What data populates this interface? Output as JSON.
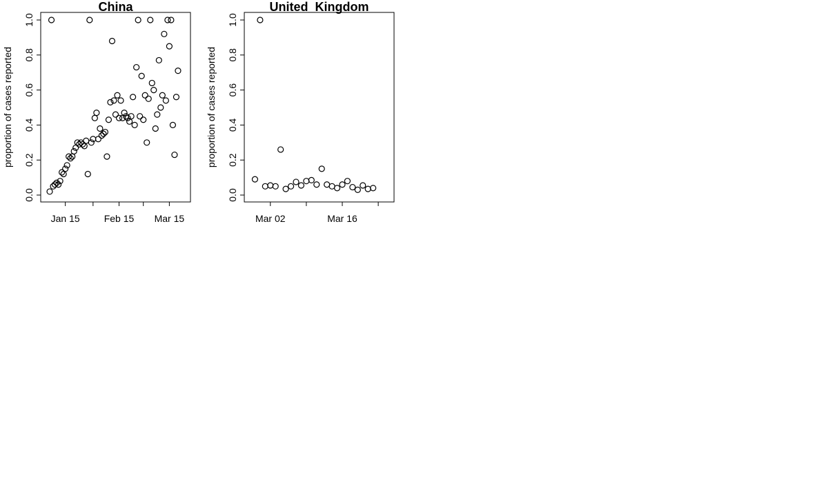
{
  "chart_data": [
    {
      "type": "scatter",
      "title": "China",
      "xlabel": "",
      "ylabel": "proportion of cases reported",
      "x_axis": "date",
      "xlim": [
        "2020-01-04",
        "2020-03-24"
      ],
      "ylim": [
        0,
        1
      ],
      "yticks": [
        "0.0",
        "0.2",
        "0.4",
        "0.6",
        "0.8",
        "1.0"
      ],
      "xticks": [
        {
          "date": "2020-01-15",
          "label": "Jan 15"
        },
        {
          "date": "2020-01-31",
          "label": ""
        },
        {
          "date": "2020-02-15",
          "label": "Feb 15"
        },
        {
          "date": "2020-02-29",
          "label": ""
        },
        {
          "date": "2020-03-15",
          "label": "Mar 15"
        }
      ],
      "grid": false,
      "points": [
        [
          "2020-01-06",
          0.02
        ],
        [
          "2020-01-07",
          1.0
        ],
        [
          "2020-01-08",
          0.05
        ],
        [
          "2020-01-09",
          0.06
        ],
        [
          "2020-01-10",
          0.07
        ],
        [
          "2020-01-11",
          0.06
        ],
        [
          "2020-01-12",
          0.08
        ],
        [
          "2020-01-13",
          0.13
        ],
        [
          "2020-01-14",
          0.12
        ],
        [
          "2020-01-15",
          0.15
        ],
        [
          "2020-01-16",
          0.17
        ],
        [
          "2020-01-17",
          0.22
        ],
        [
          "2020-01-18",
          0.21
        ],
        [
          "2020-01-19",
          0.22
        ],
        [
          "2020-01-20",
          0.25
        ],
        [
          "2020-01-21",
          0.27
        ],
        [
          "2020-01-22",
          0.3
        ],
        [
          "2020-01-23",
          0.29
        ],
        [
          "2020-01-24",
          0.3
        ],
        [
          "2020-01-25",
          0.29
        ],
        [
          "2020-01-26",
          0.28
        ],
        [
          "2020-01-27",
          0.31
        ],
        [
          "2020-01-28",
          0.12
        ],
        [
          "2020-01-29",
          1.0
        ],
        [
          "2020-01-30",
          0.3
        ],
        [
          "2020-01-31",
          0.32
        ],
        [
          "2020-02-01",
          0.44
        ],
        [
          "2020-02-02",
          0.47
        ],
        [
          "2020-02-03",
          0.32
        ],
        [
          "2020-02-04",
          0.38
        ],
        [
          "2020-02-05",
          0.34
        ],
        [
          "2020-02-06",
          0.35
        ],
        [
          "2020-02-07",
          0.36
        ],
        [
          "2020-02-08",
          0.22
        ],
        [
          "2020-02-09",
          0.43
        ],
        [
          "2020-02-10",
          0.53
        ],
        [
          "2020-02-11",
          0.88
        ],
        [
          "2020-02-12",
          0.54
        ],
        [
          "2020-02-13",
          0.46
        ],
        [
          "2020-02-14",
          0.57
        ],
        [
          "2020-02-15",
          0.44
        ],
        [
          "2020-02-16",
          0.54
        ],
        [
          "2020-02-17",
          0.44
        ],
        [
          "2020-02-18",
          0.47
        ],
        [
          "2020-02-19",
          0.45
        ],
        [
          "2020-02-20",
          0.44
        ],
        [
          "2020-02-21",
          0.42
        ],
        [
          "2020-02-22",
          0.45
        ],
        [
          "2020-02-23",
          0.56
        ],
        [
          "2020-02-24",
          0.4
        ],
        [
          "2020-02-25",
          0.73
        ],
        [
          "2020-02-26",
          1.0
        ],
        [
          "2020-02-27",
          0.45
        ],
        [
          "2020-02-28",
          0.68
        ],
        [
          "2020-02-29",
          0.43
        ],
        [
          "2020-03-01",
          0.57
        ],
        [
          "2020-03-02",
          0.3
        ],
        [
          "2020-03-03",
          0.55
        ],
        [
          "2020-03-04",
          1.0
        ],
        [
          "2020-03-05",
          0.64
        ],
        [
          "2020-03-06",
          0.6
        ],
        [
          "2020-03-07",
          0.38
        ],
        [
          "2020-03-08",
          0.46
        ],
        [
          "2020-03-09",
          0.77
        ],
        [
          "2020-03-10",
          0.5
        ],
        [
          "2020-03-11",
          0.57
        ],
        [
          "2020-03-12",
          0.92
        ],
        [
          "2020-03-13",
          0.54
        ],
        [
          "2020-03-14",
          1.0
        ],
        [
          "2020-03-15",
          0.85
        ],
        [
          "2020-03-16",
          1.0
        ],
        [
          "2020-03-17",
          0.4
        ],
        [
          "2020-03-18",
          0.23
        ],
        [
          "2020-03-19",
          0.56
        ],
        [
          "2020-03-20",
          0.71
        ]
      ]
    },
    {
      "type": "scatter",
      "title": "United_Kingdom",
      "xlabel": "",
      "ylabel": "proportion of cases reported",
      "x_axis": "date",
      "xlim": [
        "2020-02-27",
        "2020-03-25"
      ],
      "ylim": [
        0,
        1
      ],
      "yticks": [
        "0.0",
        "0.2",
        "0.4",
        "0.6",
        "0.8",
        "1.0"
      ],
      "xticks": [
        {
          "date": "2020-03-02",
          "label": "Mar 02"
        },
        {
          "date": "2020-03-09",
          "label": ""
        },
        {
          "date": "2020-03-16",
          "label": "Mar 16"
        },
        {
          "date": "2020-03-23",
          "label": ""
        }
      ],
      "grid": false,
      "points": [
        [
          "2020-02-28",
          0.09
        ],
        [
          "2020-02-29",
          1.0
        ],
        [
          "2020-03-01",
          0.05
        ],
        [
          "2020-03-02",
          0.055
        ],
        [
          "2020-03-03",
          0.05
        ],
        [
          "2020-03-04",
          0.26
        ],
        [
          "2020-03-05",
          0.035
        ],
        [
          "2020-03-06",
          0.05
        ],
        [
          "2020-03-07",
          0.075
        ],
        [
          "2020-03-08",
          0.055
        ],
        [
          "2020-03-09",
          0.08
        ],
        [
          "2020-03-10",
          0.085
        ],
        [
          "2020-03-11",
          0.06
        ],
        [
          "2020-03-12",
          0.15
        ],
        [
          "2020-03-13",
          0.06
        ],
        [
          "2020-03-14",
          0.05
        ],
        [
          "2020-03-15",
          0.04
        ],
        [
          "2020-03-16",
          0.06
        ],
        [
          "2020-03-17",
          0.08
        ],
        [
          "2020-03-18",
          0.045
        ],
        [
          "2020-03-19",
          0.03
        ],
        [
          "2020-03-20",
          0.055
        ],
        [
          "2020-03-21",
          0.035
        ],
        [
          "2020-03-22",
          0.04
        ]
      ]
    }
  ]
}
